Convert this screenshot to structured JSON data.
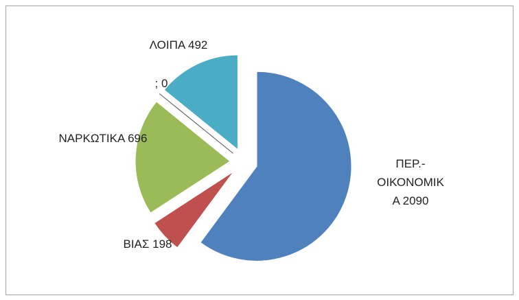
{
  "chart_data": {
    "type": "pie",
    "values": [
      2090,
      198,
      696,
      0,
      492
    ],
    "value_labels": [
      "ΠΕΡ.-ΟΙΚΟΝΟΜΙΚΑ 2090",
      "ΒΙΑΣ 198",
      "ΝΑΡΚΩΤΙΚΑ 696",
      "; 0",
      "ΛΟΙΠΑ 492"
    ],
    "colors": [
      "#4f81bd",
      "#c0504d",
      "#9bbb59",
      "#8064a2",
      "#4bacc6"
    ]
  }
}
